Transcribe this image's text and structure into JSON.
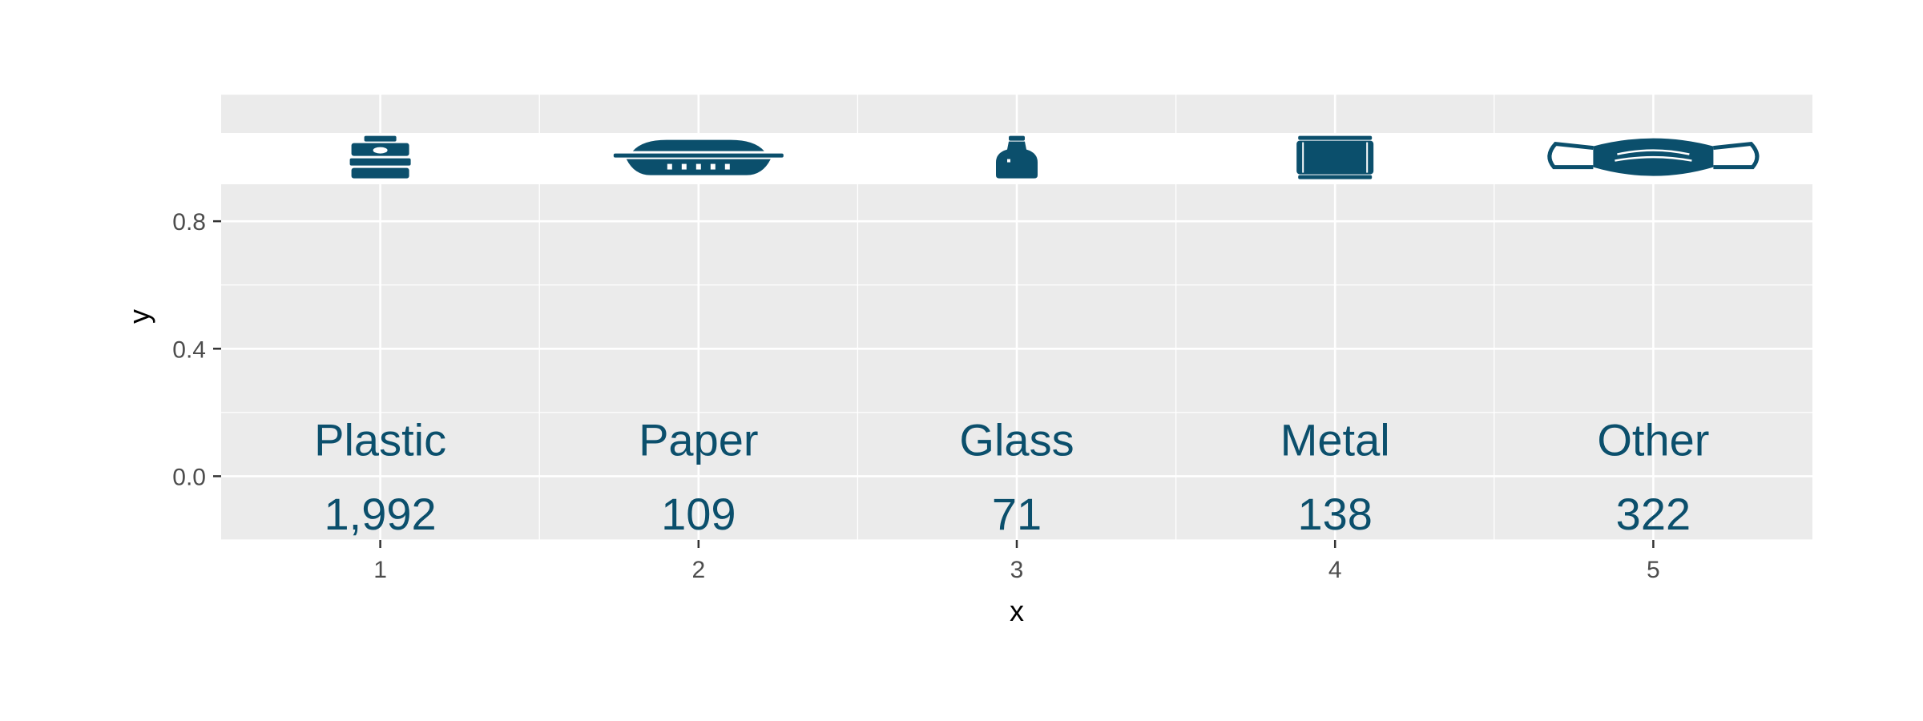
{
  "chart_data": {
    "type": "scatter",
    "title": "",
    "xlabel": "x",
    "ylabel": "y",
    "x_ticks": [
      "1",
      "2",
      "3",
      "4",
      "5"
    ],
    "y_ticks": [
      "0.0",
      "0.4",
      "0.8"
    ],
    "xlim": [
      0.5,
      5.5
    ],
    "ylim": [
      -0.2,
      1.2
    ],
    "grid": true,
    "legend": "none",
    "accent_color": "#0B4F6C",
    "panel_color": "#EBEBEB",
    "points": [
      {
        "x": 1,
        "category": "Plastic",
        "count": "1,992",
        "icon": "food-container-icon"
      },
      {
        "x": 2,
        "category": "Paper",
        "count": "109",
        "icon": "takeout-tray-icon"
      },
      {
        "x": 3,
        "category": "Glass",
        "count": "71",
        "icon": "bottle-icon"
      },
      {
        "x": 4,
        "category": "Metal",
        "count": "138",
        "icon": "can-icon"
      },
      {
        "x": 5,
        "category": "Other",
        "count": "322",
        "icon": "face-mask-icon"
      }
    ]
  }
}
